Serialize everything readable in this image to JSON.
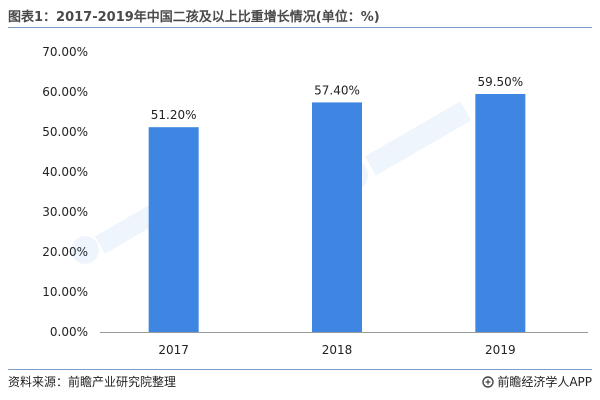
{
  "title": "图表1：2017-2019年中国二孩及以上比重增长情况(单位：%)",
  "source": "资料来源：前瞻产业研究院整理",
  "brand": "前瞻经济学人APP",
  "colors": {
    "bar": "#3f86e3",
    "rule": "#7a9ac8",
    "axis": "#999999"
  },
  "chart_data": {
    "type": "bar",
    "categories": [
      "2017",
      "2018",
      "2019"
    ],
    "values": [
      51.2,
      57.4,
      59.5
    ],
    "value_labels": [
      "51.20%",
      "57.40%",
      "59.50%"
    ],
    "title": "图表1：2017-2019年中国二孩及以上比重增长情况(单位：%)",
    "xlabel": "",
    "ylabel": "",
    "ylim": [
      0,
      70
    ],
    "yticks": [
      0,
      10,
      20,
      30,
      40,
      50,
      60,
      70
    ],
    "ytick_labels": [
      "0.00%",
      "10.00%",
      "20.00%",
      "30.00%",
      "40.00%",
      "50.00%",
      "60.00%",
      "70.00%"
    ],
    "grid": false,
    "legend": "none"
  }
}
